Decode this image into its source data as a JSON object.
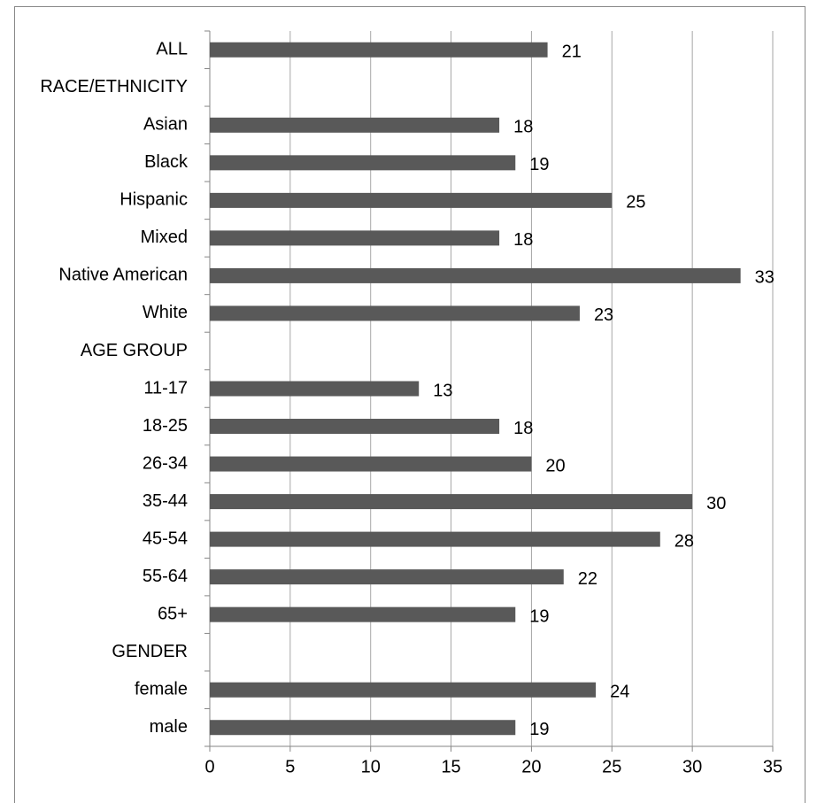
{
  "chart_data": {
    "type": "hbar",
    "categories": [
      "ALL",
      "RACE/ETHNICITY",
      "Asian",
      "Black",
      "Hispanic",
      "Mixed",
      "Native American",
      "White",
      "AGE GROUP",
      "11-17",
      "18-25",
      "26-34",
      "35-44",
      "45-54",
      "55-64",
      "65+",
      "GENDER",
      "female",
      "male"
    ],
    "values": [
      21,
      null,
      18,
      19,
      25,
      18,
      33,
      23,
      null,
      13,
      18,
      20,
      30,
      28,
      22,
      19,
      null,
      24,
      19
    ],
    "color": "#595959",
    "xlim": [
      0,
      35
    ],
    "xticks": [
      0,
      5,
      10,
      15,
      20,
      25,
      30,
      35
    ],
    "grid": true
  }
}
